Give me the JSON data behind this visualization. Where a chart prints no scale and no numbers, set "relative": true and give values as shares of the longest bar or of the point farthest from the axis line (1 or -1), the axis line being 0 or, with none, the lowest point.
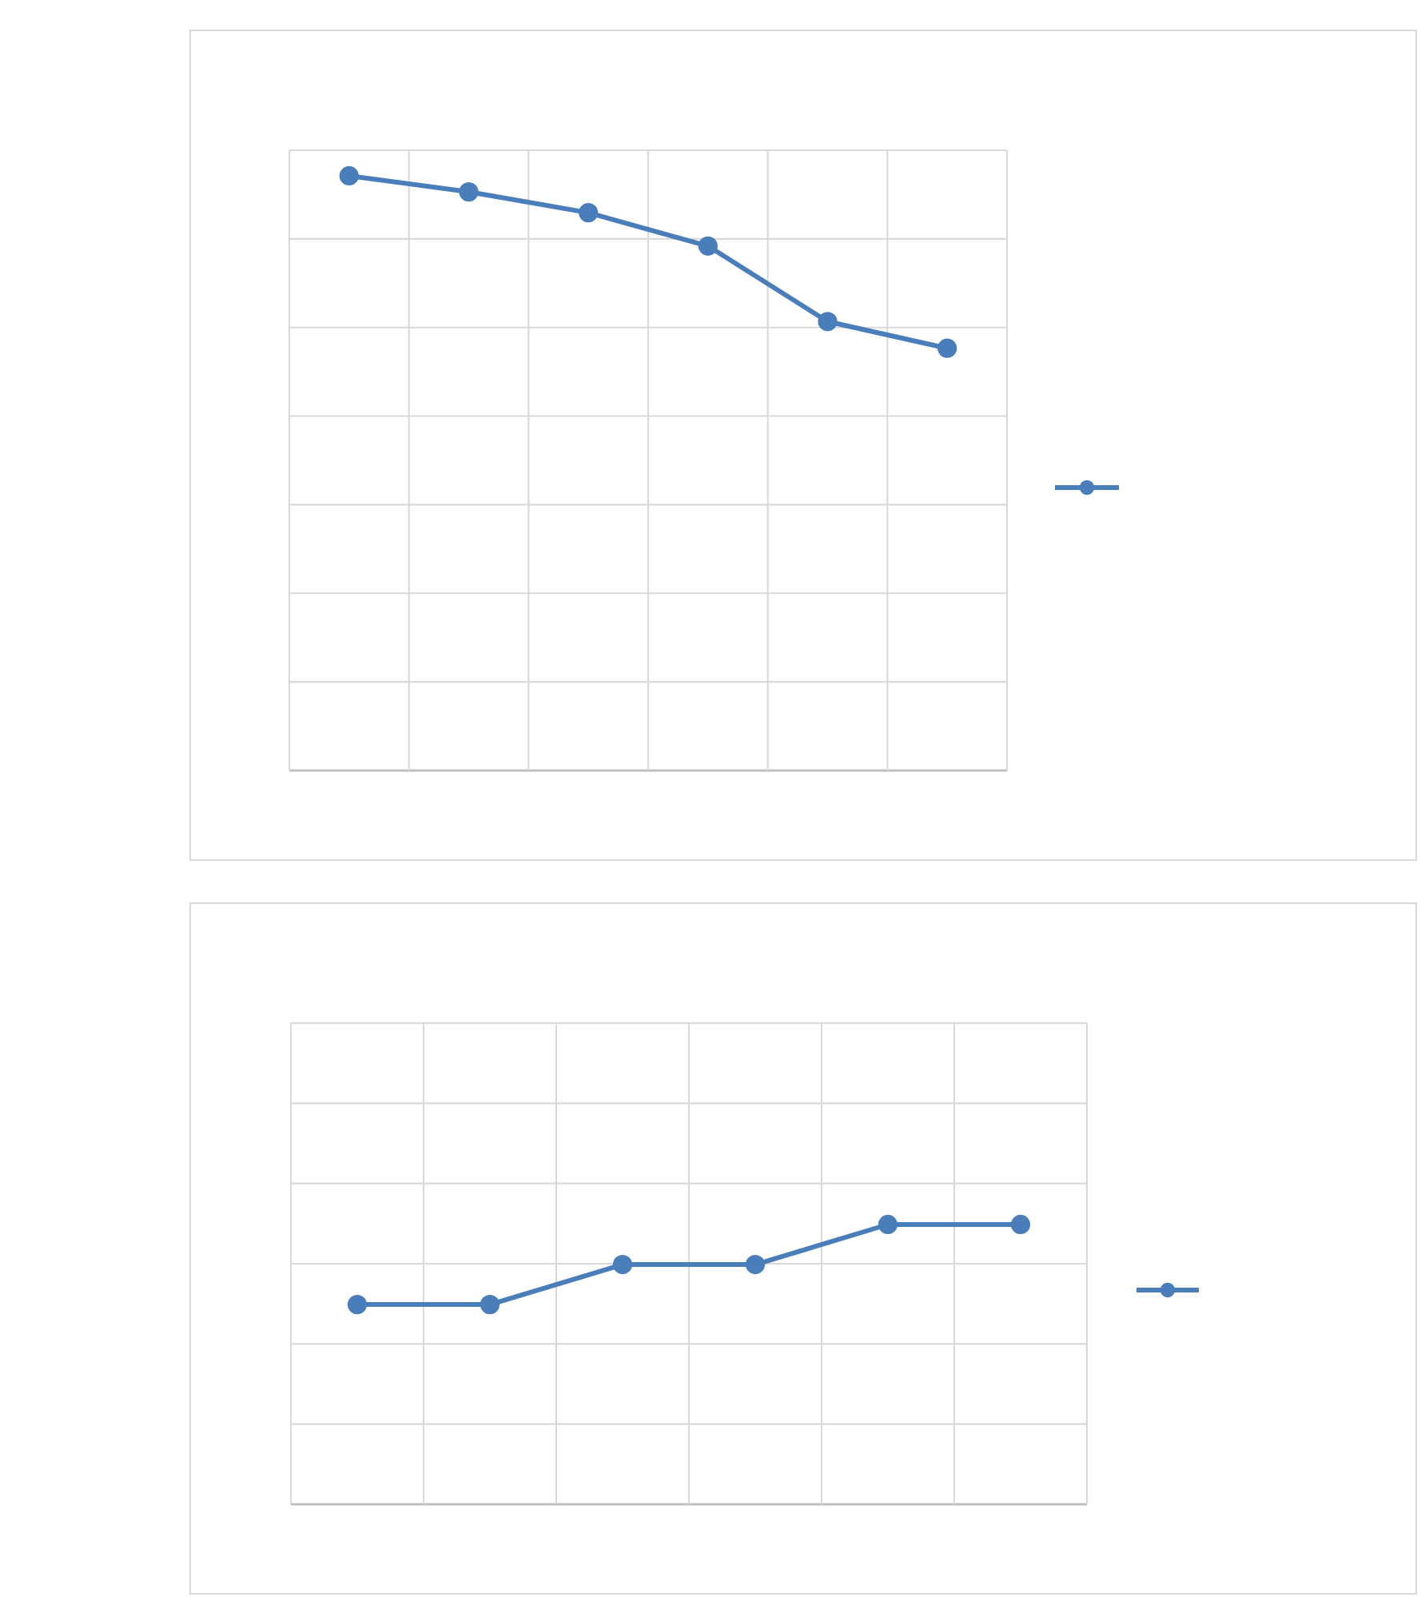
{
  "chart_data": [
    {
      "type": "line",
      "categories": [
        null,
        null,
        null,
        null,
        null,
        null
      ],
      "relative": true,
      "grid": true,
      "marker": "circle",
      "line_style": "solid",
      "series": [
        {
          "color": "#4a7ebb",
          "values": [
            1,
            0.973,
            0.938,
            0.882,
            0.755,
            0.71
          ]
        }
      ]
    },
    {
      "type": "line",
      "categories": [
        null,
        null,
        null,
        null,
        null,
        null
      ],
      "relative": true,
      "grid": true,
      "marker": "circle",
      "line_style": "solid",
      "series": [
        {
          "color": "#4a7ebb",
          "values": [
            0.714,
            0.714,
            0.857,
            0.857,
            1,
            1
          ]
        }
      ]
    }
  ]
}
